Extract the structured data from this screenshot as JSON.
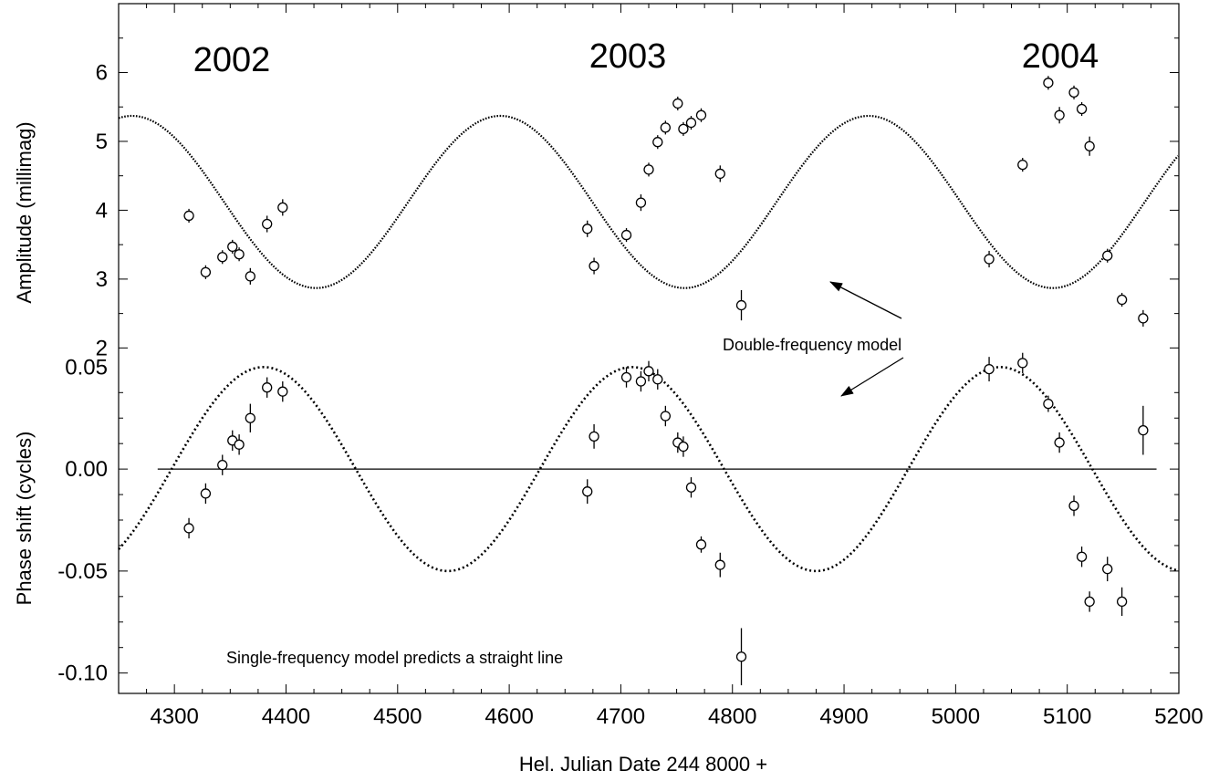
{
  "chart_data": {
    "type": "scatter",
    "xlabel": "Hel. Julian Date 244 8000 +",
    "xlim": [
      4250,
      5200
    ],
    "x_ticks": [
      "4300",
      "4400",
      "4500",
      "4600",
      "4700",
      "4800",
      "4900",
      "5000",
      "5100",
      "5200"
    ],
    "year_labels": [
      {
        "text": "2002",
        "x": 4330
      },
      {
        "text": "2003",
        "x": 4730
      },
      {
        "text": "2004",
        "x": 5130
      }
    ],
    "panels": [
      {
        "id": "amplitude",
        "ylabel": "Amplitude (millimag)",
        "ylim": [
          1.7,
          7.0
        ],
        "y_ticks": [
          2,
          3,
          4,
          5,
          6
        ],
        "y_tick_labels": [
          "2",
          "3",
          "4",
          "5",
          "6"
        ],
        "model": {
          "name": "Double-frequency model",
          "style": "dotted",
          "mean": 4.12,
          "amplitude": 1.25,
          "period": 330,
          "peak_x": 4262
        },
        "points": [
          {
            "x": 4313,
            "y": 3.92,
            "err": 0.1
          },
          {
            "x": 4328,
            "y": 3.1,
            "err": 0.1
          },
          {
            "x": 4343,
            "y": 3.32,
            "err": 0.1
          },
          {
            "x": 4352,
            "y": 3.47,
            "err": 0.1
          },
          {
            "x": 4358,
            "y": 3.36,
            "err": 0.1
          },
          {
            "x": 4368,
            "y": 3.04,
            "err": 0.12
          },
          {
            "x": 4383,
            "y": 3.8,
            "err": 0.12
          },
          {
            "x": 4397,
            "y": 4.04,
            "err": 0.12
          },
          {
            "x": 4670,
            "y": 3.73,
            "err": 0.12
          },
          {
            "x": 4676,
            "y": 3.19,
            "err": 0.12
          },
          {
            "x": 4705,
            "y": 3.64,
            "err": 0.1
          },
          {
            "x": 4718,
            "y": 4.11,
            "err": 0.12
          },
          {
            "x": 4725,
            "y": 4.59,
            "err": 0.1
          },
          {
            "x": 4733,
            "y": 4.99,
            "err": 0.1
          },
          {
            "x": 4740,
            "y": 5.2,
            "err": 0.1
          },
          {
            "x": 4751,
            "y": 5.55,
            "err": 0.1
          },
          {
            "x": 4756,
            "y": 5.18,
            "err": 0.1
          },
          {
            "x": 4763,
            "y": 5.27,
            "err": 0.1
          },
          {
            "x": 4772,
            "y": 5.38,
            "err": 0.1
          },
          {
            "x": 4789,
            "y": 4.53,
            "err": 0.12
          },
          {
            "x": 4808,
            "y": 2.62,
            "err": 0.22
          },
          {
            "x": 5030,
            "y": 3.29,
            "err": 0.12
          },
          {
            "x": 5060,
            "y": 4.66,
            "err": 0.1
          },
          {
            "x": 5083,
            "y": 5.85,
            "err": 0.1
          },
          {
            "x": 5093,
            "y": 5.38,
            "err": 0.12
          },
          {
            "x": 5106,
            "y": 5.71,
            "err": 0.1
          },
          {
            "x": 5113,
            "y": 5.47,
            "err": 0.1
          },
          {
            "x": 5120,
            "y": 4.93,
            "err": 0.14
          },
          {
            "x": 5136,
            "y": 3.34,
            "err": 0.1
          },
          {
            "x": 5149,
            "y": 2.7,
            "err": 0.1
          },
          {
            "x": 5168,
            "y": 2.43,
            "err": 0.12
          }
        ]
      },
      {
        "id": "phase",
        "ylabel": "Phase shift  (cycles)",
        "ylim": [
          -0.11,
          0.06
        ],
        "y_ticks": [
          -0.1,
          -0.05,
          0.0,
          0.05
        ],
        "y_tick_labels": [
          "-0.10",
          "-0.05",
          "0.00",
          "0.05"
        ],
        "reference_line": {
          "y": 0.0,
          "x_from": 4285,
          "x_to": 5180
        },
        "model": {
          "name": "Double-frequency model",
          "style": "dotted",
          "mean": 0.0,
          "amplitude": 0.05,
          "period": 330,
          "peak_x": 4380
        },
        "points": [
          {
            "x": 4313,
            "y": -0.029,
            "err": 0.005
          },
          {
            "x": 4328,
            "y": -0.012,
            "err": 0.005
          },
          {
            "x": 4343,
            "y": 0.002,
            "err": 0.005
          },
          {
            "x": 4352,
            "y": 0.014,
            "err": 0.005
          },
          {
            "x": 4358,
            "y": 0.012,
            "err": 0.005
          },
          {
            "x": 4368,
            "y": 0.025,
            "err": 0.007
          },
          {
            "x": 4383,
            "y": 0.04,
            "err": 0.005
          },
          {
            "x": 4397,
            "y": 0.038,
            "err": 0.005
          },
          {
            "x": 4670,
            "y": -0.011,
            "err": 0.006
          },
          {
            "x": 4676,
            "y": 0.016,
            "err": 0.006
          },
          {
            "x": 4705,
            "y": 0.045,
            "err": 0.005
          },
          {
            "x": 4718,
            "y": 0.043,
            "err": 0.005
          },
          {
            "x": 4725,
            "y": 0.048,
            "err": 0.005
          },
          {
            "x": 4733,
            "y": 0.044,
            "err": 0.005
          },
          {
            "x": 4740,
            "y": 0.026,
            "err": 0.005
          },
          {
            "x": 4751,
            "y": 0.013,
            "err": 0.005
          },
          {
            "x": 4756,
            "y": 0.011,
            "err": 0.005
          },
          {
            "x": 4763,
            "y": -0.009,
            "err": 0.005
          },
          {
            "x": 4772,
            "y": -0.037,
            "err": 0.004
          },
          {
            "x": 4789,
            "y": -0.047,
            "err": 0.006
          },
          {
            "x": 4808,
            "y": -0.092,
            "err": 0.014
          },
          {
            "x": 5030,
            "y": 0.049,
            "err": 0.006
          },
          {
            "x": 5060,
            "y": 0.052,
            "err": 0.005
          },
          {
            "x": 5083,
            "y": 0.032,
            "err": 0.004
          },
          {
            "x": 5093,
            "y": 0.013,
            "err": 0.005
          },
          {
            "x": 5106,
            "y": -0.018,
            "err": 0.005
          },
          {
            "x": 5113,
            "y": -0.043,
            "err": 0.005
          },
          {
            "x": 5120,
            "y": -0.065,
            "err": 0.005
          },
          {
            "x": 5136,
            "y": -0.049,
            "err": 0.006
          },
          {
            "x": 5149,
            "y": -0.065,
            "err": 0.007
          },
          {
            "x": 5168,
            "y": 0.019,
            "err": 0.012
          }
        ]
      }
    ],
    "annotations": [
      {
        "text": "Double-frequency model",
        "arrows": 2
      },
      {
        "text": "Single-frequency model predicts a straight line"
      }
    ],
    "grid": false
  }
}
